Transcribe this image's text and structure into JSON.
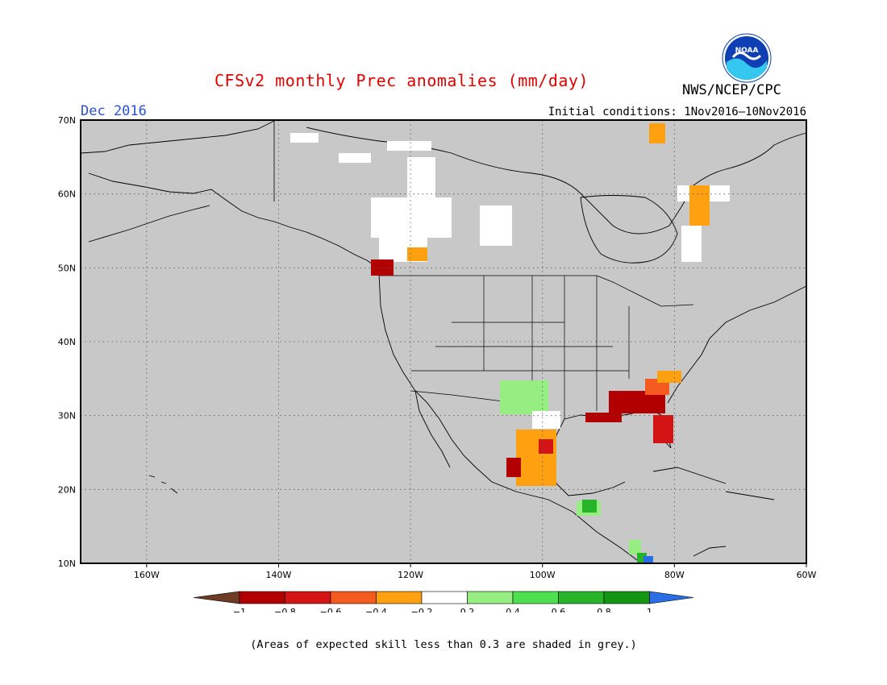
{
  "title": "CFSv2 monthly Prec anomalies (mm/day)",
  "month": "Dec 2016",
  "initial_conditions": "Initial conditions: 1Nov2016–10Nov2016",
  "agency": "NWS/NCEP/CPC",
  "logo_text": "NOAA",
  "footnote": "(Areas of expected skill less than 0.3 are shaded in grey.)",
  "map": {
    "lat_labels": [
      "70N",
      "60N",
      "50N",
      "40N",
      "30N",
      "20N",
      "10N"
    ],
    "lon_labels": [
      "160W",
      "140W",
      "120W",
      "100W",
      "80W",
      "60W"
    ],
    "lat_values": [
      70,
      60,
      50,
      40,
      30,
      20,
      10
    ],
    "lon_values": [
      -160,
      -140,
      -120,
      -100,
      -80,
      -60
    ],
    "extent": {
      "lon_min": -170,
      "lon_max": -60,
      "lat_min": 10,
      "lat_max": 70
    }
  },
  "colorbar": {
    "labels": [
      "−1",
      "−0.8",
      "−0.6",
      "−0.4",
      "−0.2",
      "0.2",
      "0.4",
      "0.6",
      "0.8",
      "1"
    ],
    "colors": {
      "lt_m1": "#6e3b26",
      "m1_m08": "#b20000",
      "m08_m06": "#d41414",
      "m06_m04": "#f55a1e",
      "m04_m02": "#ffa010",
      "m02_02": "#ffffff",
      "p02_04": "#96ee82",
      "p04_06": "#4ee04e",
      "p06_08": "#28b428",
      "p08_1": "#149614",
      "gt_1": "#2a6ee6"
    },
    "mask_color": "#c8c8c8"
  },
  "anomaly_regions": [
    {
      "name": "southeast-us-dry",
      "category": "m1_m08",
      "lat": 32,
      "lon": -86
    },
    {
      "name": "florida-dry",
      "category": "m08_m06",
      "lat": 27,
      "lon": -81
    },
    {
      "name": "mexico-dry",
      "category": "m04_m02",
      "lat": 24,
      "lon": -101
    },
    {
      "name": "sw-us-wet",
      "category": "p02_04",
      "lat": 32,
      "lon": -105
    },
    {
      "name": "central-america-wet",
      "category": "p06_08",
      "lat": 16,
      "lon": -91
    },
    {
      "name": "pacific-nw-dry",
      "category": "m1_m08",
      "lat": 50,
      "lon": -126
    },
    {
      "name": "labrador-dry",
      "category": "m04_m02",
      "lat": 60,
      "lon": -76
    }
  ]
}
